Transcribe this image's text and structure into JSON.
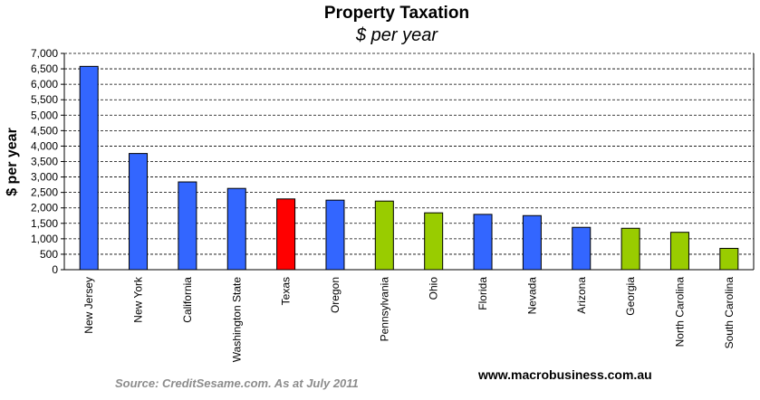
{
  "chart_data": {
    "type": "bar",
    "title": "Property Taxation",
    "subtitle": "$ per year",
    "xlabel": "",
    "ylabel": "$ per year",
    "ylim": [
      0,
      7000
    ],
    "yticks": [
      "0",
      "500",
      "1,000",
      "1,500",
      "2,000",
      "2,500",
      "3,000",
      "3,500",
      "4,000",
      "4,500",
      "5,000",
      "5,500",
      "6,000",
      "6,500",
      "7,000"
    ],
    "grid": true,
    "categories": [
      "New Jersey",
      "New York",
      "California",
      "Washington State",
      "Texas",
      "Oregon",
      "Pennsylvania",
      "Ohio",
      "Florida",
      "Nevada",
      "Arizona",
      "Georgia",
      "North Carolina",
      "South Carolina"
    ],
    "values": [
      6580,
      3760,
      2840,
      2630,
      2290,
      2250,
      2220,
      1840,
      1790,
      1750,
      1370,
      1340,
      1210,
      690
    ],
    "bar_colors": [
      "#3366ff",
      "#3366ff",
      "#3366ff",
      "#3366ff",
      "#ff0000",
      "#3366ff",
      "#99cc00",
      "#99cc00",
      "#3366ff",
      "#3366ff",
      "#3366ff",
      "#99cc00",
      "#99cc00",
      "#99cc00"
    ],
    "source": "Source: CreditSesame.com.  As at July 2011",
    "watermark": "www.macrobusiness.com.au"
  }
}
